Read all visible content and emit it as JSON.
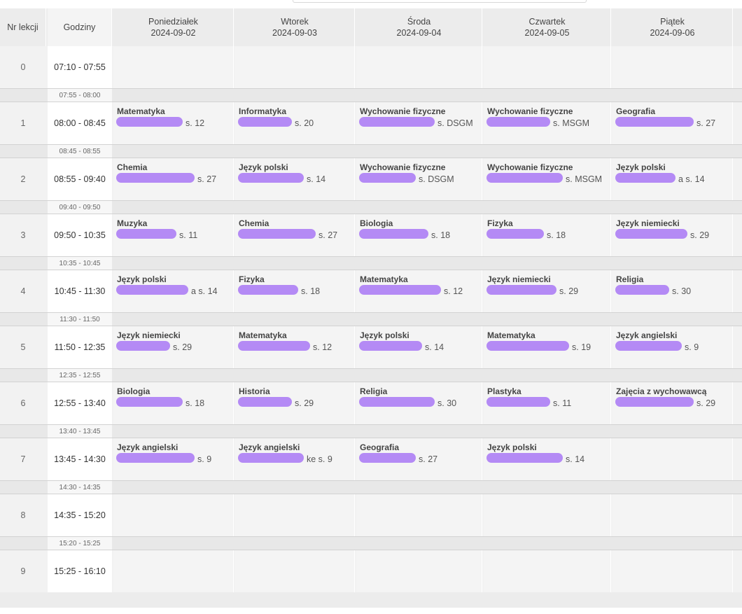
{
  "header": {
    "nr_label": "Nr lekcji",
    "hours_label": "Godziny",
    "days": [
      {
        "name": "Poniedziałek",
        "date": "2024-09-02"
      },
      {
        "name": "Wtorek",
        "date": "2024-09-03"
      },
      {
        "name": "Środa",
        "date": "2024-09-04"
      },
      {
        "name": "Czwartek",
        "date": "2024-09-05"
      },
      {
        "name": "Piątek",
        "date": "2024-09-06"
      }
    ]
  },
  "breaks": [
    "07:55 - 08:00",
    "08:45 - 08:55",
    "09:40 - 09:50",
    "10:35 - 10:45",
    "11:30 - 11:50",
    "12:35 - 12:55",
    "13:40 - 13:45",
    "14:30 - 14:35",
    "15:20 - 15:25"
  ],
  "lessons": [
    {
      "nr": "0",
      "hours": "07:10 - 07:55",
      "cells": [
        null,
        null,
        null,
        null,
        null
      ]
    },
    {
      "nr": "1",
      "hours": "08:00 - 08:45",
      "cells": [
        {
          "subject": "Matematyka",
          "room": "s. 12"
        },
        {
          "subject": "Informatyka",
          "room": "s. 20"
        },
        {
          "subject": "Wychowanie fizyczne",
          "room": "s. DSGM"
        },
        {
          "subject": "Wychowanie fizyczne",
          "room": "s. MSGM"
        },
        {
          "subject": "Geografia",
          "room": "s. 27"
        }
      ]
    },
    {
      "nr": "2",
      "hours": "08:55 - 09:40",
      "cells": [
        {
          "subject": "Chemia",
          "room": "s. 27"
        },
        {
          "subject": "Język polski",
          "room": "s. 14"
        },
        {
          "subject": "Wychowanie fizyczne",
          "room": "s. DSGM"
        },
        {
          "subject": "Wychowanie fizyczne",
          "room": "s. MSGM"
        },
        {
          "subject": "Język polski",
          "room": "a  s. 14"
        }
      ]
    },
    {
      "nr": "3",
      "hours": "09:50 - 10:35",
      "cells": [
        {
          "subject": "Muzyka",
          "room": "s. 11"
        },
        {
          "subject": "Chemia",
          "room": "s. 27"
        },
        {
          "subject": "Biologia",
          "room": "s. 18"
        },
        {
          "subject": "Fizyka",
          "room": "s. 18"
        },
        {
          "subject": "Język niemiecki",
          "room": "s. 29"
        }
      ]
    },
    {
      "nr": "4",
      "hours": "10:45 - 11:30",
      "cells": [
        {
          "subject": "Język polski",
          "room": "a  s. 14"
        },
        {
          "subject": "Fizyka",
          "room": "s. 18"
        },
        {
          "subject": "Matematyka",
          "room": "s. 12"
        },
        {
          "subject": "Język niemiecki",
          "room": "s. 29"
        },
        {
          "subject": "Religia",
          "room": "s. 30"
        }
      ]
    },
    {
      "nr": "5",
      "hours": "11:50 - 12:35",
      "cells": [
        {
          "subject": "Język niemiecki",
          "room": "s. 29"
        },
        {
          "subject": "Matematyka",
          "room": "s. 12"
        },
        {
          "subject": "Język polski",
          "room": "s. 14"
        },
        {
          "subject": "Matematyka",
          "room": "s. 19"
        },
        {
          "subject": "Język angielski",
          "room": "s. 9"
        }
      ]
    },
    {
      "nr": "6",
      "hours": "12:55 - 13:40",
      "cells": [
        {
          "subject": "Biologia",
          "room": "s. 18"
        },
        {
          "subject": "Historia",
          "room": "s. 29"
        },
        {
          "subject": "Religia",
          "room": "s. 30"
        },
        {
          "subject": "Plastyka",
          "room": "s. 11"
        },
        {
          "subject": "Zajęcia z wychowawcą",
          "room": "s. 29"
        }
      ]
    },
    {
      "nr": "7",
      "hours": "13:45 - 14:30",
      "cells": [
        {
          "subject": "Język angielski",
          "room": "s. 9"
        },
        {
          "subject": "Język angielski",
          "room": "ke  s. 9"
        },
        {
          "subject": "Geografia",
          "room": "s. 27"
        },
        {
          "subject": "Język polski",
          "room": "s. 14"
        },
        null
      ]
    },
    {
      "nr": "8",
      "hours": "14:35 - 15:20",
      "cells": [
        null,
        null,
        null,
        null,
        null
      ]
    },
    {
      "nr": "9",
      "hours": "15:25 - 16:10",
      "cells": [
        null,
        null,
        null,
        null,
        null
      ]
    }
  ],
  "colors": {
    "redaction": "#b48af5",
    "header_bg": "#ececec",
    "cell_bg": "#f4f4f4",
    "break_bg": "#e8e8e8"
  }
}
